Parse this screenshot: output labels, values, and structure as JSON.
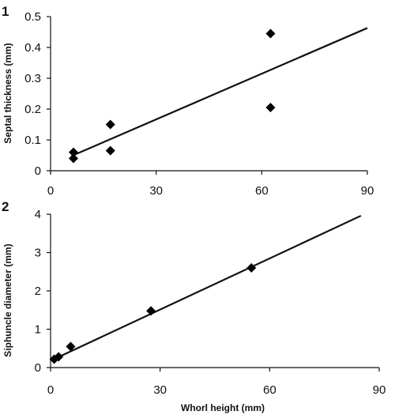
{
  "chart_data": [
    {
      "type": "scatter",
      "panel_label": "1",
      "title": "",
      "xlabel": "",
      "ylabel": "Septal thickness (mm)",
      "xlim": [
        0,
        90
      ],
      "ylim": [
        0,
        0.5
      ],
      "x_ticks": [
        "0",
        "30",
        "60",
        "90"
      ],
      "y_ticks": [
        "0",
        "0.1",
        "0.2",
        "0.3",
        "0.4",
        "0.5"
      ],
      "grid": false,
      "legend": "none",
      "points": [
        {
          "x": 6.5,
          "y": 0.06
        },
        {
          "x": 6.5,
          "y": 0.04
        },
        {
          "x": 17,
          "y": 0.15
        },
        {
          "x": 17,
          "y": 0.065
        },
        {
          "x": 62.5,
          "y": 0.445
        },
        {
          "x": 62.5,
          "y": 0.205
        }
      ],
      "trendline": {
        "x1": 6,
        "y1": 0.048,
        "x2": 90,
        "y2": 0.463
      }
    },
    {
      "type": "scatter",
      "panel_label": "2",
      "title": "",
      "xlabel": "Whorl height (mm)",
      "ylabel": "Siphuncle diameter (mm)",
      "xlim": [
        0,
        90
      ],
      "ylim": [
        0,
        4
      ],
      "x_ticks": [
        "0",
        "30",
        "60",
        "90"
      ],
      "y_ticks": [
        "0",
        "1",
        "2",
        "3",
        "4"
      ],
      "grid": false,
      "legend": "none",
      "points": [
        {
          "x": 1,
          "y": 0.22
        },
        {
          "x": 2.2,
          "y": 0.28
        },
        {
          "x": 5.5,
          "y": 0.55
        },
        {
          "x": 27.5,
          "y": 1.48
        },
        {
          "x": 55,
          "y": 2.6
        }
      ],
      "trendline": {
        "x1": 0.5,
        "y1": 0.2,
        "x2": 85,
        "y2": 3.96
      }
    }
  ]
}
